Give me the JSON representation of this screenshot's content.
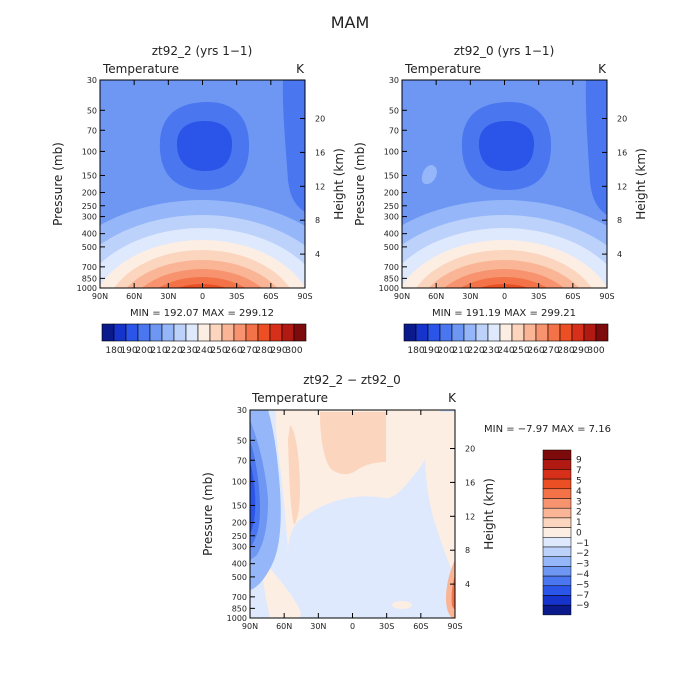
{
  "figure": {
    "title": "MAM"
  },
  "color_scales": {
    "temperature": [
      "#0a1a8c",
      "#1633cc",
      "#2a55e8",
      "#4a76f0",
      "#6e97f4",
      "#95b6f8",
      "#bcd2fb",
      "#dfe9fd",
      "#fdeee3",
      "#fbd5be",
      "#f9b596",
      "#f7946f",
      "#f37248",
      "#ec4f24",
      "#d7301a",
      "#b01a12",
      "#7e0b0b"
    ],
    "difference": [
      "#0a1a8c",
      "#1633cc",
      "#2a55e8",
      "#4a76f0",
      "#6e97f4",
      "#95b6f8",
      "#bcd2fb",
      "#dfe9fd",
      "#fdeee3",
      "#fbd5be",
      "#f9b596",
      "#f7946f",
      "#f37248",
      "#ec4f24",
      "#d7301a",
      "#b01a12",
      "#7e0b0b"
    ]
  },
  "chart_data": [
    {
      "id": "panel1",
      "type": "heatmap",
      "title": "zt92_2 (yrs 1−1)",
      "variable_label": "Temperature",
      "units": "K",
      "ylabel": "Pressure (mb)",
      "y2label": "Height (km)",
      "xlabel": "",
      "x_ticks": [
        "90N",
        "60N",
        "30N",
        "0",
        "30S",
        "60S",
        "90S"
      ],
      "y_ticks": [
        "30",
        "50",
        "70",
        "100",
        "150",
        "200",
        "250",
        "300",
        "400",
        "500",
        "700",
        "850",
        "1000"
      ],
      "y_ticks_right": [
        "20",
        "16",
        "12",
        "8",
        "4"
      ],
      "stats": "MIN = 192.07   MAX = 299.12",
      "colorbar_labels": [
        "180",
        "190",
        "200",
        "210",
        "220",
        "230",
        "240",
        "250",
        "260",
        "270",
        "280",
        "290",
        "300"
      ],
      "field_min": 192.07,
      "field_max": 299.12
    },
    {
      "id": "panel2",
      "type": "heatmap",
      "title": "zt92_0 (yrs 1−1)",
      "variable_label": "Temperature",
      "units": "K",
      "ylabel": "Pressure (mb)",
      "y2label": "Height (km)",
      "xlabel": "",
      "x_ticks": [
        "90N",
        "60N",
        "30N",
        "0",
        "30S",
        "60S",
        "90S"
      ],
      "y_ticks": [
        "30",
        "50",
        "70",
        "100",
        "150",
        "200",
        "250",
        "300",
        "400",
        "500",
        "700",
        "850",
        "1000"
      ],
      "y_ticks_right": [
        "20",
        "16",
        "12",
        "8",
        "4"
      ],
      "stats": "MIN = 191.19   MAX = 299.21",
      "colorbar_labels": [
        "180",
        "190",
        "200",
        "210",
        "220",
        "230",
        "240",
        "250",
        "260",
        "270",
        "280",
        "290",
        "300"
      ],
      "field_min": 191.19,
      "field_max": 299.21
    },
    {
      "id": "panel3",
      "type": "heatmap",
      "title": "zt92_2 − zt92_0",
      "variable_label": "Temperature",
      "units": "K",
      "ylabel": "Pressure (mb)",
      "y2label": "Height (km)",
      "xlabel": "",
      "x_ticks": [
        "90N",
        "60N",
        "30N",
        "0",
        "30S",
        "60S",
        "90S"
      ],
      "y_ticks": [
        "30",
        "50",
        "70",
        "100",
        "150",
        "200",
        "250",
        "300",
        "400",
        "500",
        "700",
        "850",
        "1000"
      ],
      "y_ticks_right": [
        "20",
        "16",
        "12",
        "8",
        "4"
      ],
      "stats": "MIN =   −7.97   MAX =    7.16",
      "colorbar_labels": [
        "9",
        "7",
        "5",
        "4",
        "3",
        "2",
        "1",
        "0",
        "−1",
        "−2",
        "−3",
        "−4",
        "−5",
        "−7",
        "−9"
      ],
      "field_min": -7.97,
      "field_max": 7.16
    }
  ]
}
